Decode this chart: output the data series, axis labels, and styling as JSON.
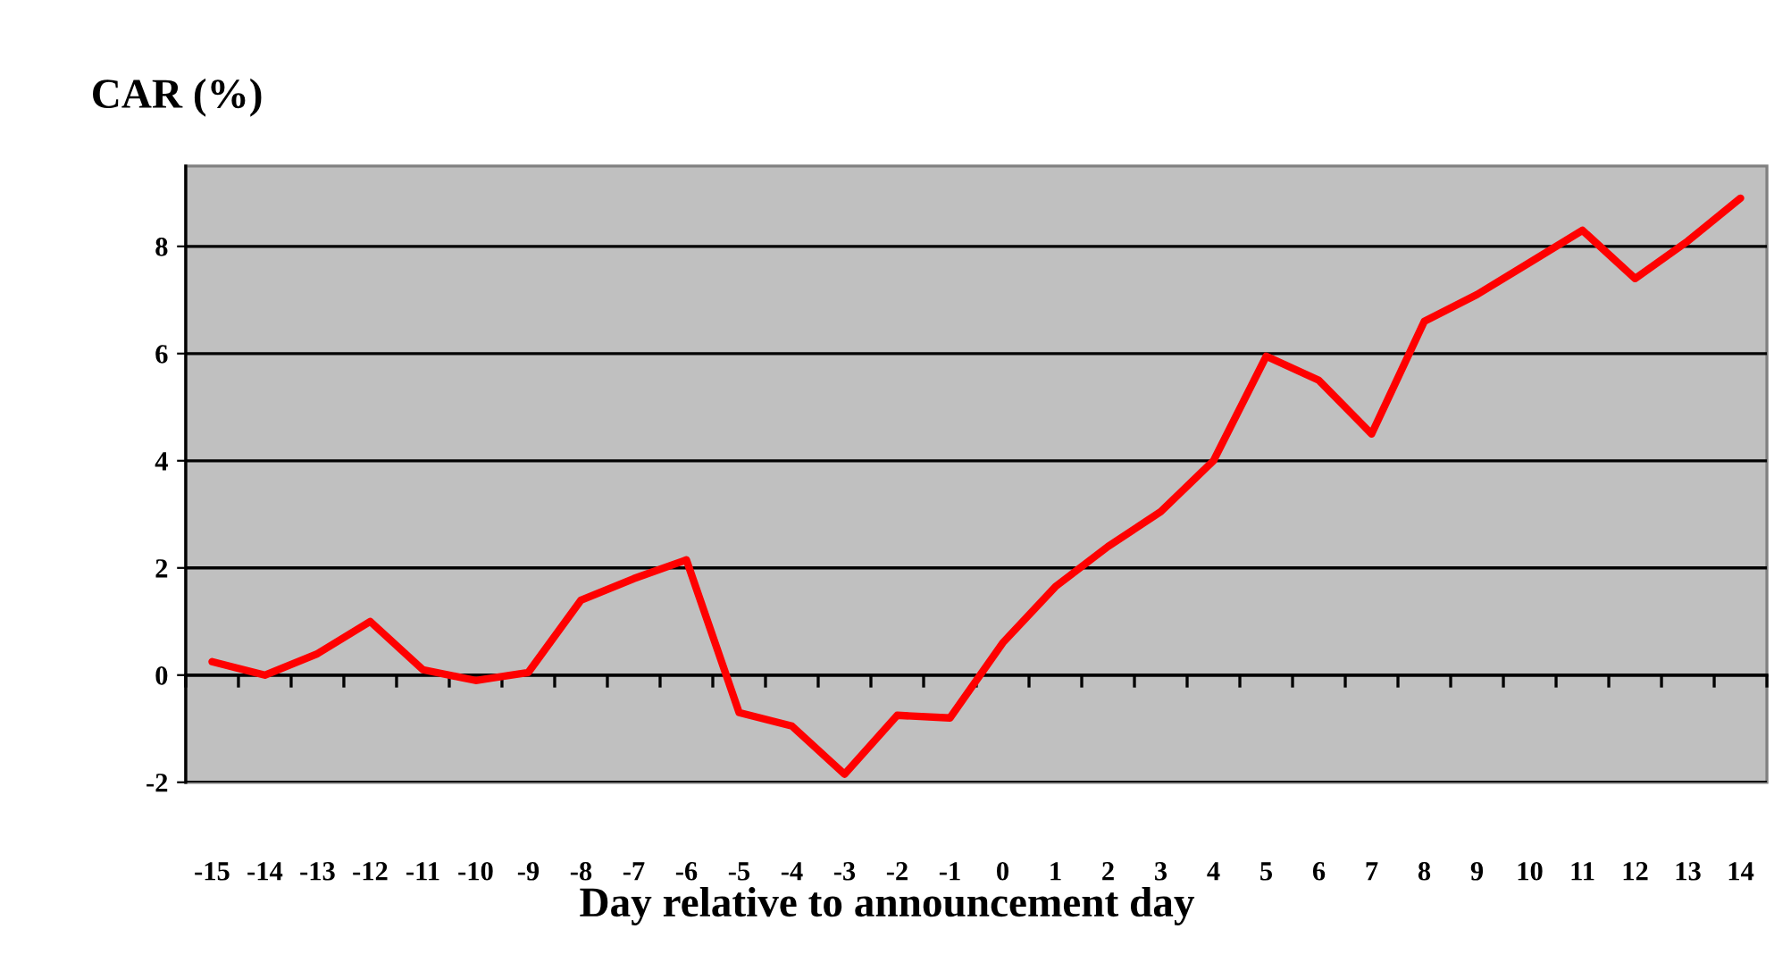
{
  "chart_data": {
    "type": "line",
    "ylabel": "CAR (%)",
    "xlabel": "Day relative to announcement day",
    "categories": [
      "-15",
      "-14",
      "-13",
      "-12",
      "-11",
      "-10",
      "-9",
      "-8",
      "-7",
      "-6",
      "-5",
      "-4",
      "-3",
      "-2",
      "-1",
      "0",
      "1",
      "2",
      "3",
      "4",
      "5",
      "6",
      "7",
      "8",
      "9",
      "10",
      "11",
      "12",
      "13",
      "14"
    ],
    "series": [
      {
        "color": "#ff0000",
        "values": [
          0.25,
          0.0,
          0.4,
          1.0,
          0.1,
          -0.1,
          0.05,
          1.4,
          1.8,
          2.15,
          -0.7,
          -0.95,
          -1.85,
          -0.75,
          -0.8,
          0.6,
          1.65,
          2.4,
          3.05,
          4.0,
          5.95,
          5.5,
          4.5,
          6.6,
          7.1,
          7.7,
          8.3,
          7.4,
          8.1,
          8.9
        ]
      }
    ],
    "ylim": [
      -2,
      9.5
    ],
    "yticks": [
      -2,
      0,
      2,
      4,
      6,
      8
    ],
    "grid": "y",
    "line_style": "solid"
  }
}
